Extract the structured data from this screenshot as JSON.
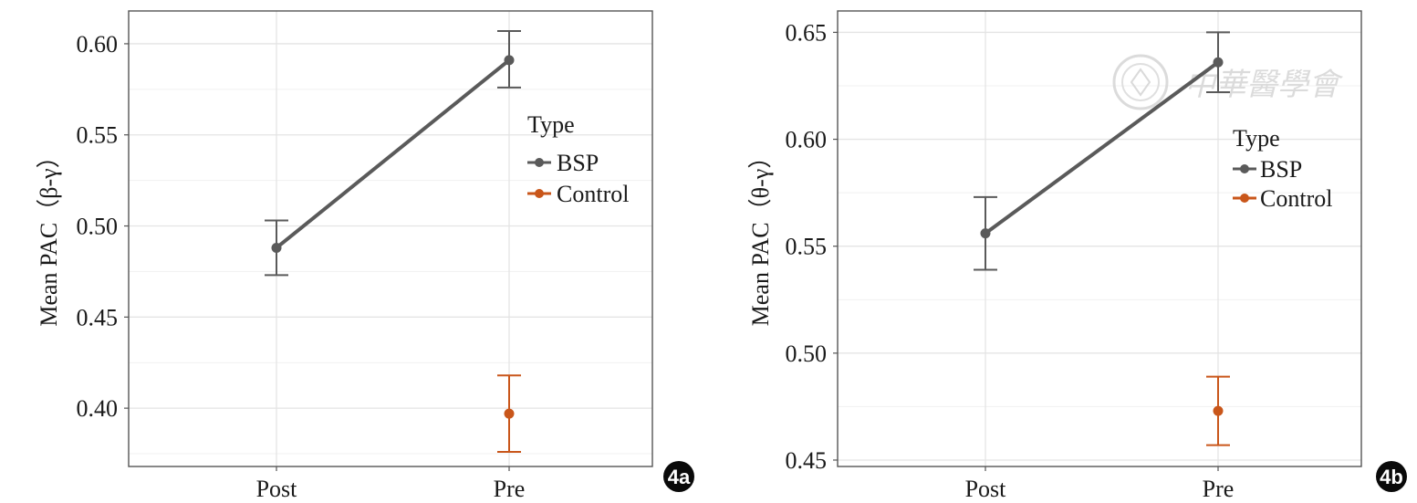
{
  "chart_data": [
    {
      "type": "line",
      "panel_label": "4a",
      "ylabel": "Mean PAC（β-γ）",
      "xlabel": "",
      "categories": [
        "Post",
        "Pre"
      ],
      "ylim": [
        0.368,
        0.618
      ],
      "yticks": [
        0.4,
        0.45,
        0.5,
        0.55,
        0.6
      ],
      "ytick_labels": [
        "0.40",
        "0.45",
        "0.50",
        "0.55",
        "0.60"
      ],
      "grid": true,
      "legend": {
        "title": "Type",
        "position": "right",
        "entries": [
          "BSP",
          "Control"
        ]
      },
      "series": [
        {
          "name": "BSP",
          "color": "#5a5a5a",
          "points": [
            {
              "x": "Post",
              "y": 0.488,
              "err_low": 0.473,
              "err_high": 0.503
            },
            {
              "x": "Pre",
              "y": 0.591,
              "err_low": 0.576,
              "err_high": 0.607
            }
          ]
        },
        {
          "name": "Control",
          "color": "#c9561a",
          "points": [
            {
              "x": "Pre",
              "y": 0.397,
              "err_low": 0.376,
              "err_high": 0.418
            }
          ]
        }
      ]
    },
    {
      "type": "line",
      "panel_label": "4b",
      "ylabel": "Mean PAC（θ-γ）",
      "xlabel": "",
      "categories": [
        "Post",
        "Pre"
      ],
      "ylim": [
        0.447,
        0.66
      ],
      "yticks": [
        0.45,
        0.5,
        0.55,
        0.6,
        0.65
      ],
      "ytick_labels": [
        "0.45",
        "0.50",
        "0.55",
        "0.60",
        "0.65"
      ],
      "grid": true,
      "legend": {
        "title": "Type",
        "position": "right",
        "entries": [
          "BSP",
          "Control"
        ]
      },
      "series": [
        {
          "name": "BSP",
          "color": "#5a5a5a",
          "points": [
            {
              "x": "Post",
              "y": 0.556,
              "err_low": 0.539,
              "err_high": 0.573
            },
            {
              "x": "Pre",
              "y": 0.636,
              "err_low": 0.622,
              "err_high": 0.65
            }
          ]
        },
        {
          "name": "Control",
          "color": "#c9561a",
          "points": [
            {
              "x": "Pre",
              "y": 0.473,
              "err_low": 0.457,
              "err_high": 0.489
            }
          ]
        }
      ]
    }
  ],
  "watermark": {
    "text": "中華醫學會",
    "icon": "society-seal-icon"
  }
}
